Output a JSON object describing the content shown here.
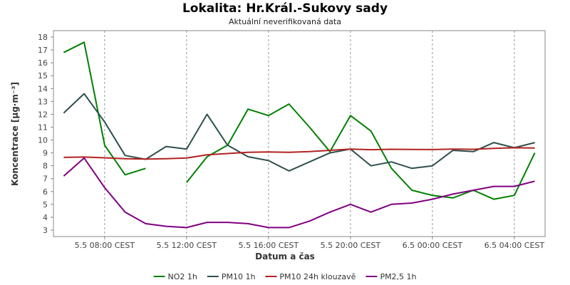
{
  "title": "Lokalita: Hr.Král.-Sukovy sady",
  "subtitle": "Aktuální neverifikovaná data",
  "chart_data": {
    "type": "line",
    "xlabel": "Datum a čas",
    "ylabel": "Koncentrace [µg·m⁻³]",
    "ylim": [
      2.5,
      18.5
    ],
    "yticks": [
      3,
      4,
      5,
      6,
      7,
      8,
      9,
      10,
      11,
      12,
      13,
      14,
      15,
      16,
      17,
      18
    ],
    "xlim": [
      "5.5 05:30",
      "6.5 05:30"
    ],
    "xticks": [
      {
        "x": "5.5 08:00",
        "label": "5.5 08:00 CEST"
      },
      {
        "x": "5.5 12:00",
        "label": "5.5 12:00 CEST"
      },
      {
        "x": "5.5 16:00",
        "label": "5.5 16:00 CEST"
      },
      {
        "x": "5.5 20:00",
        "label": "5.5 20:00 CEST"
      },
      {
        "x": "6.5 00:00",
        "label": "6.5 00:00 CEST"
      },
      {
        "x": "6.5 04:00",
        "label": "6.5 04:00 CEST"
      }
    ],
    "grid": true,
    "legend_position": "bottom",
    "x": [
      "5.5 06:00",
      "5.5 07:00",
      "5.5 08:00",
      "5.5 09:00",
      "5.5 10:00",
      "5.5 11:00",
      "5.5 12:00",
      "5.5 13:00",
      "5.5 14:00",
      "5.5 15:00",
      "5.5 16:00",
      "5.5 17:00",
      "5.5 18:00",
      "5.5 19:00",
      "5.5 20:00",
      "5.5 21:00",
      "5.5 22:00",
      "5.5 23:00",
      "6.5 00:00",
      "6.5 01:00",
      "6.5 02:00",
      "6.5 03:00",
      "6.5 04:00",
      "6.5 05:00"
    ],
    "series": [
      {
        "name": "NO2 1h",
        "color": "#008000",
        "values": [
          16.8,
          17.6,
          9.6,
          7.3,
          7.8,
          null,
          6.7,
          8.7,
          9.6,
          12.4,
          11.9,
          12.8,
          11.0,
          9.1,
          11.9,
          10.7,
          7.8,
          6.1,
          5.7,
          5.5,
          6.1,
          5.4,
          5.7,
          9.0
        ]
      },
      {
        "name": "PM10 1h",
        "color": "#2f4f4f",
        "values": [
          12.1,
          13.6,
          11.4,
          8.8,
          8.5,
          9.5,
          9.3,
          12.0,
          9.6,
          8.7,
          8.4,
          7.6,
          8.3,
          9.0,
          9.3,
          8.0,
          8.3,
          7.8,
          8.0,
          9.2,
          9.1,
          9.8,
          9.4,
          9.8
        ]
      },
      {
        "name": "PM10 24h klouzavě",
        "color": "#b22222",
        "values": [
          8.65,
          8.68,
          8.62,
          8.55,
          8.52,
          8.55,
          8.6,
          8.85,
          8.95,
          9.05,
          9.07,
          9.05,
          9.1,
          9.2,
          9.3,
          9.25,
          9.28,
          9.27,
          9.26,
          9.3,
          9.28,
          9.35,
          9.4,
          9.38
        ]
      },
      {
        "name": "PM2,5 1h",
        "color": "#800080",
        "values": [
          7.2,
          8.6,
          6.3,
          4.4,
          3.5,
          3.3,
          3.2,
          3.6,
          3.6,
          3.5,
          3.2,
          3.2,
          3.7,
          4.4,
          5.0,
          4.4,
          5.0,
          5.1,
          5.4,
          5.8,
          6.1,
          6.4,
          6.4,
          6.8
        ]
      }
    ]
  }
}
